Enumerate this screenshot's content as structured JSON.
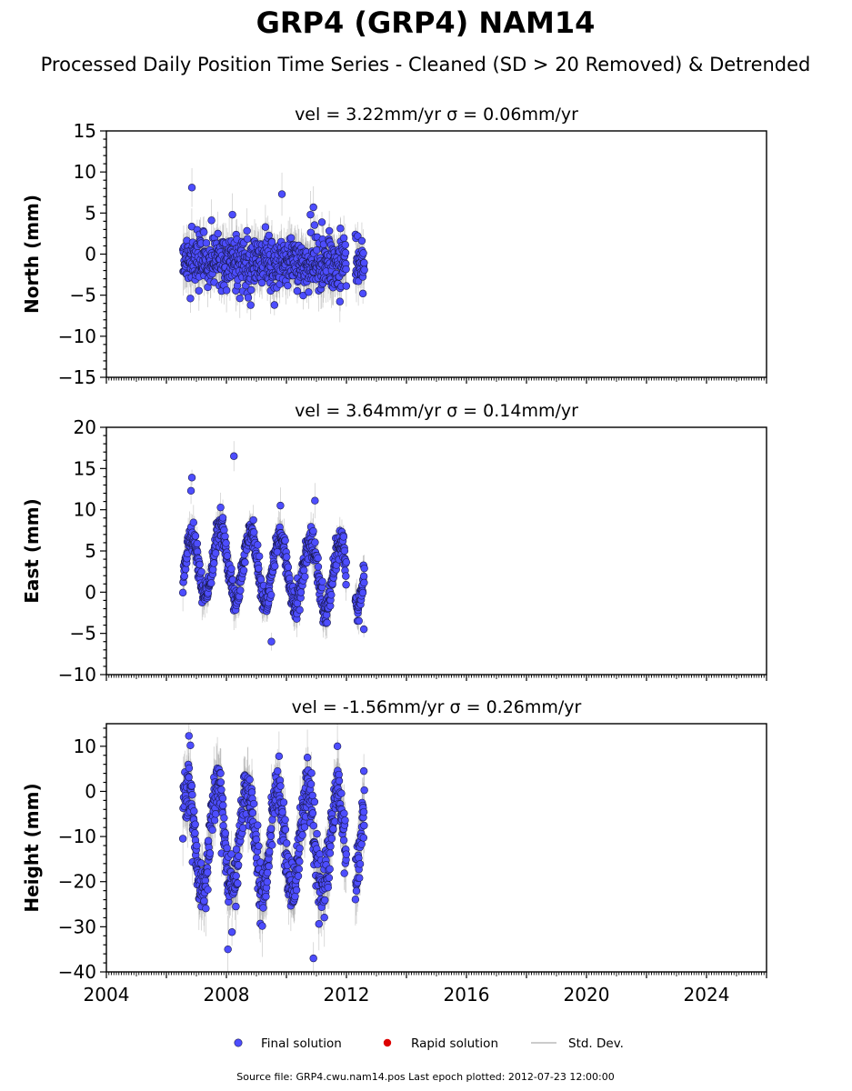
{
  "figure": {
    "title": "GRP4 (GRP4) NAM14",
    "subtitle": "Processed Daily Position Time Series - Cleaned (SD > 20 Removed) & Detrended",
    "source_note": "Source file: GRP4.cwu.nam14.pos  Last epoch plotted: 2012-07-23 12:00:00"
  },
  "legend": {
    "final": "Final solution",
    "rapid": "Rapid solution",
    "std": "Std. Dev."
  },
  "colors": {
    "final_fill": "#4d4dff",
    "final_edge": "#1a1a4d",
    "rapid": "#dd0000",
    "std": "#999999"
  },
  "chart_data": [
    {
      "type": "scatter",
      "panel": "north",
      "title": "vel = 3.22mm/yr   σ = 0.06mm/yr",
      "ylabel": "North (mm)",
      "xlim": [
        2004,
        2026
      ],
      "ylim": [
        -15,
        15
      ],
      "yticks": [
        -15,
        -10,
        -5,
        0,
        5,
        10,
        15
      ],
      "ytick_labels": [
        "−15",
        "−10",
        "−5",
        "0",
        "5",
        "10",
        "15"
      ],
      "xticks": [],
      "series": [
        {
          "name": "Final solution",
          "segments": [
            [
              2006.55,
              2012.0
            ],
            [
              2012.3,
              2012.6
            ]
          ],
          "seasonal_amp": 0,
          "trend": [
            [
              2006.55,
              -1.0
            ],
            [
              2012.6,
              -1.0
            ]
          ],
          "scatter_sd": 1.6,
          "std_dev": 2.0,
          "outliers": [
            [
              2006.85,
              8.1
            ],
            [
              2009.85,
              7.3
            ],
            [
              2010.9,
              5.7
            ],
            [
              2010.8,
              4.8
            ],
            [
              2008.2,
              4.8
            ],
            [
              2009.3,
              3.3
            ],
            [
              2006.8,
              -5.4
            ],
            [
              2009.6,
              -6.2
            ],
            [
              2012.55,
              -4.8
            ]
          ]
        }
      ]
    },
    {
      "type": "scatter",
      "panel": "east",
      "title": "vel = 3.64mm/yr   σ = 0.14mm/yr",
      "ylabel": "East (mm)",
      "xlim": [
        2004,
        2026
      ],
      "ylim": [
        -10,
        20
      ],
      "yticks": [
        -10,
        -5,
        0,
        5,
        10,
        15,
        20
      ],
      "ytick_labels": [
        "−10",
        "−5",
        "0",
        "5",
        "10",
        "15",
        "20"
      ],
      "xticks": [],
      "series": [
        {
          "name": "Final solution",
          "segments": [
            [
              2006.55,
              2012.0
            ],
            [
              2012.3,
              2012.6
            ]
          ],
          "seasonal_amp": 4.0,
          "seasonal_peak": 0.8,
          "trend": [
            [
              2006.55,
              1.0
            ],
            [
              2007.0,
              4.0
            ],
            [
              2012.6,
              1.5
            ]
          ],
          "scatter_sd": 0.9,
          "std_dev": 1.6,
          "outliers": [
            [
              2006.85,
              13.9
            ],
            [
              2006.82,
              12.3
            ],
            [
              2008.25,
              16.5
            ],
            [
              2009.8,
              10.5
            ],
            [
              2010.95,
              11.1
            ],
            [
              2012.58,
              -4.5
            ],
            [
              2009.5,
              -6.0
            ]
          ]
        }
      ]
    },
    {
      "type": "scatter",
      "panel": "height",
      "title": "vel = -1.56mm/yr   σ = 0.26mm/yr",
      "ylabel": "Height (mm)",
      "xlim": [
        2004,
        2026
      ],
      "ylim": [
        -40,
        15
      ],
      "yticks": [
        -40,
        -30,
        -20,
        -10,
        0,
        10
      ],
      "ytick_labels": [
        "−40",
        "−30",
        "−20",
        "−10",
        "0",
        "10"
      ],
      "xticks": [
        2004,
        2008,
        2012,
        2016,
        2020,
        2024
      ],
      "xtick_labels": [
        "2004",
        "2008",
        "2012",
        "2016",
        "2020",
        "2024"
      ],
      "series": [
        {
          "name": "Final solution",
          "segments": [
            [
              2006.55,
              2012.0
            ],
            [
              2012.3,
              2012.6
            ]
          ],
          "seasonal_amp": 11.0,
          "seasonal_peak": 0.7,
          "trend": [
            [
              2006.55,
              -10.0
            ],
            [
              2012.6,
              -12.0
            ]
          ],
          "scatter_sd": 3.2,
          "std_dev": 5.0,
          "outliers": [
            [
              2006.75,
              12.3
            ],
            [
              2006.8,
              10.2
            ],
            [
              2008.05,
              -35.0
            ],
            [
              2010.9,
              -37.0
            ],
            [
              2011.7,
              10.0
            ],
            [
              2012.58,
              4.5
            ],
            [
              2010.7,
              7.5
            ]
          ]
        }
      ]
    }
  ]
}
